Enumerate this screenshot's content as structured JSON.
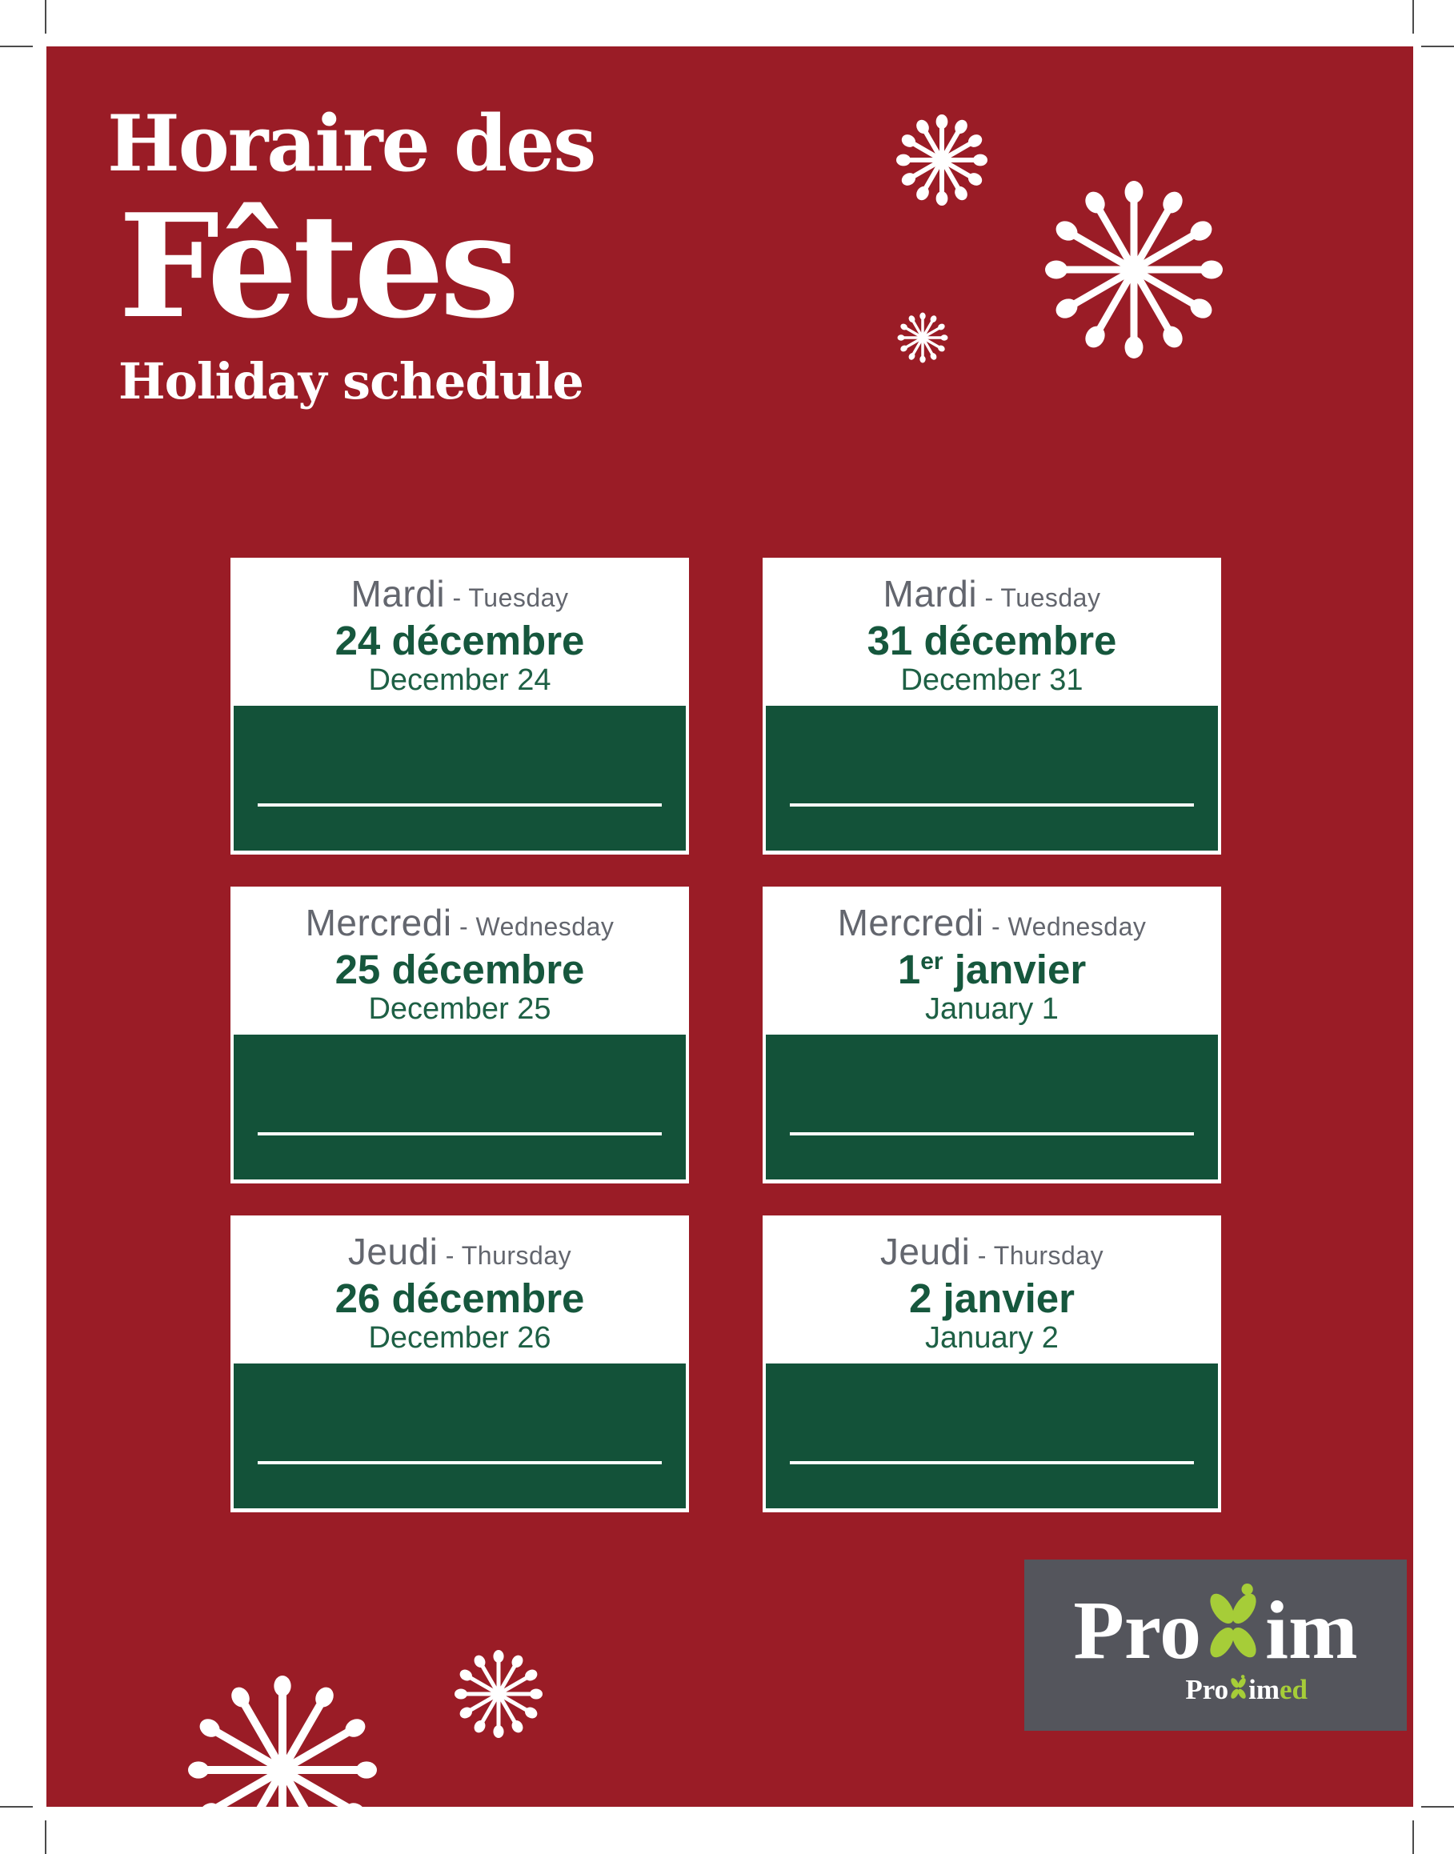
{
  "title": {
    "line1": "Horaire des",
    "line2": "Fêtes",
    "subtitle": "Holiday schedule"
  },
  "cards": [
    {
      "day_fr": "Mardi",
      "separator": "-",
      "day_en": "Tuesday",
      "date_fr_main": "24 décembre",
      "date_fr_sup": "",
      "date_fr_rest": "",
      "date_en": "December 24"
    },
    {
      "day_fr": "Mardi",
      "separator": "-",
      "day_en": "Tuesday",
      "date_fr_main": "31 décembre",
      "date_fr_sup": "",
      "date_fr_rest": "",
      "date_en": "December 31"
    },
    {
      "day_fr": "Mercredi",
      "separator": "-",
      "day_en": "Wednesday",
      "date_fr_main": "25 décembre",
      "date_fr_sup": "",
      "date_fr_rest": "",
      "date_en": "December 25"
    },
    {
      "day_fr": "Mercredi",
      "separator": "-",
      "day_en": "Wednesday",
      "date_fr_main": "1",
      "date_fr_sup": "er",
      "date_fr_rest": " janvier",
      "date_en": "January 1"
    },
    {
      "day_fr": "Jeudi",
      "separator": "-",
      "day_en": "Thursday",
      "date_fr_main": "26 décembre",
      "date_fr_sup": "",
      "date_fr_rest": "",
      "date_en": "December 26"
    },
    {
      "day_fr": "Jeudi",
      "separator": "-",
      "day_en": "Thursday",
      "date_fr_main": "2 janvier",
      "date_fr_sup": "",
      "date_fr_rest": "",
      "date_en": "January 2"
    }
  ],
  "logo": {
    "brand_pre": "Pro",
    "brand_post": "im",
    "sub_pre": "Pro",
    "sub_mid": "im",
    "sub_suffix": "ed"
  },
  "colors": {
    "red": "#9a1c26",
    "green_dark": "#135239",
    "green_text": "#16573d",
    "green_text_light": "#1e6045",
    "gray_text": "#63666e",
    "logo_gray": "#54555c",
    "lime": "#a6cd38",
    "mark": "#4b4b4b"
  }
}
